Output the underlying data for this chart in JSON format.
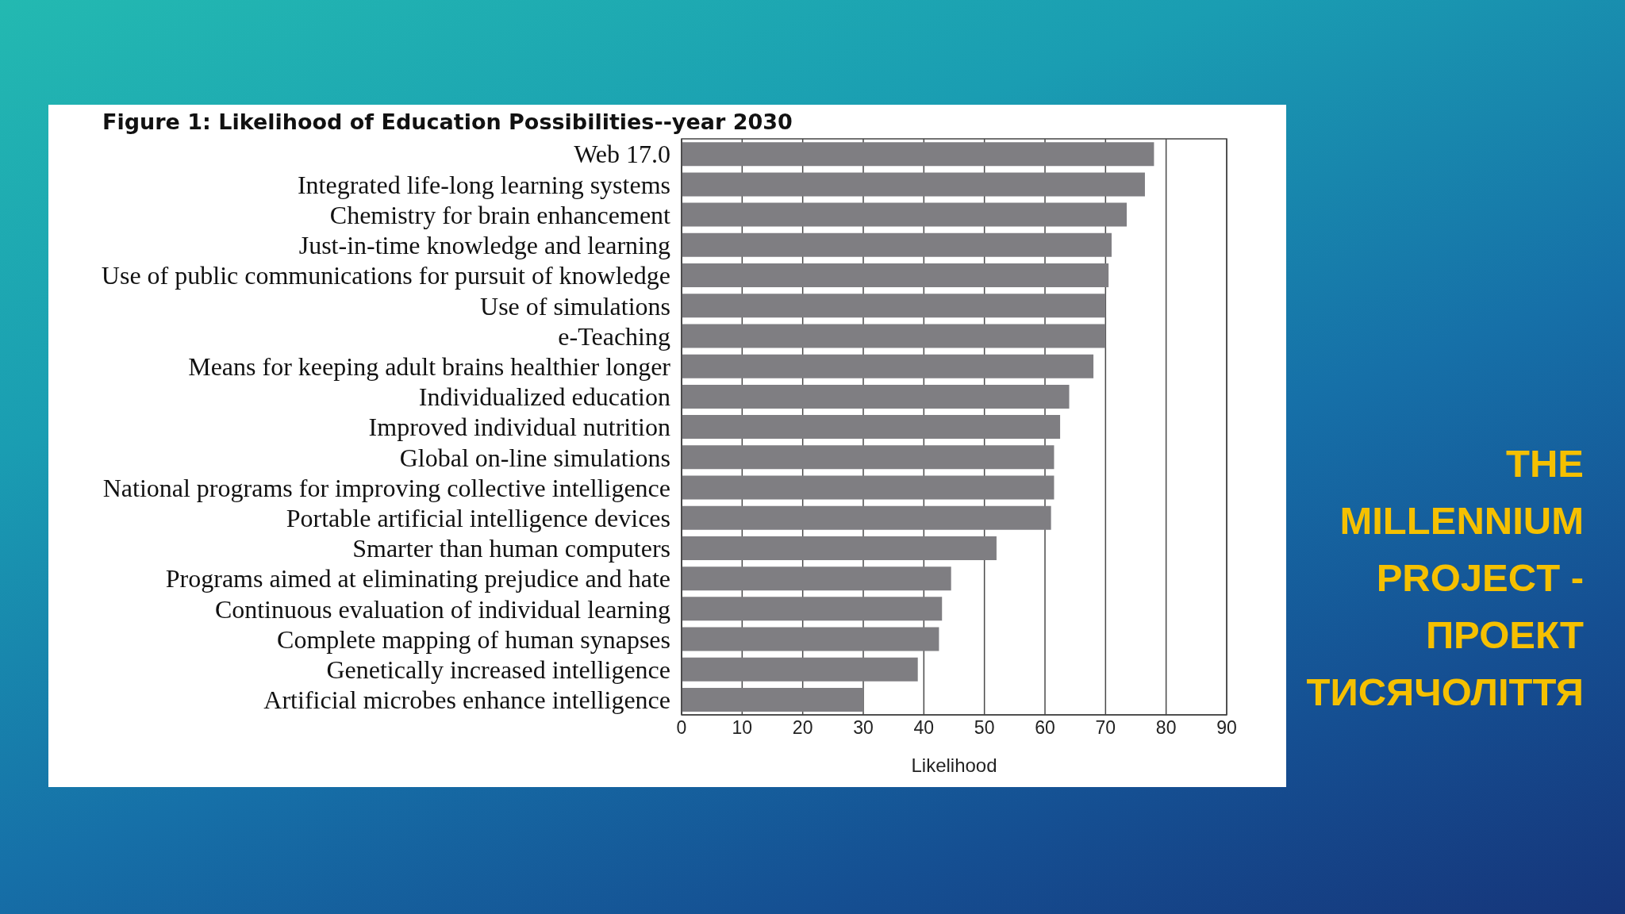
{
  "chart_data": {
    "type": "bar",
    "orientation": "horizontal",
    "title": "Figure 1: Likelihood of Education Possibilities--year 2030",
    "xlabel": "Likelihood",
    "annotations": [
      "THE MILLENNIUM PROJECT - ПРОЕКТ ТИСЯЧОЛІТТЯ"
    ],
    "categories": [
      "Web 17.0",
      "Integrated life-long learning systems",
      "Chemistry for brain enhancement",
      "Just-in-time knowledge and learning",
      "Use of public communications for pursuit of knowledge",
      "Use of simulations",
      "e-Teaching",
      "Means for keeping adult brains healthier longer",
      "Individualized education",
      "Improved individual nutrition",
      "Global  on-line simulations",
      "National programs for improving collective intelligence",
      "Portable artificial intelligence devices",
      "Smarter than human computers",
      "Programs aimed at eliminating prejudice and hate",
      "Continuous evaluation of individual learning",
      "Complete mapping of human synapses",
      "Genetically increased intelligence",
      "Artificial microbes enhance intelligence"
    ],
    "values": [
      78,
      76.5,
      73.5,
      71,
      70.5,
      70,
      70,
      68,
      64,
      62.5,
      61.5,
      61.5,
      61,
      52,
      44.5,
      43,
      42.5,
      39,
      30
    ],
    "color": "#7f7e82",
    "xlim": [
      0,
      90
    ],
    "xticks": [
      0,
      10,
      20,
      30,
      40,
      50,
      60,
      70,
      80,
      90
    ],
    "grid": "x"
  }
}
